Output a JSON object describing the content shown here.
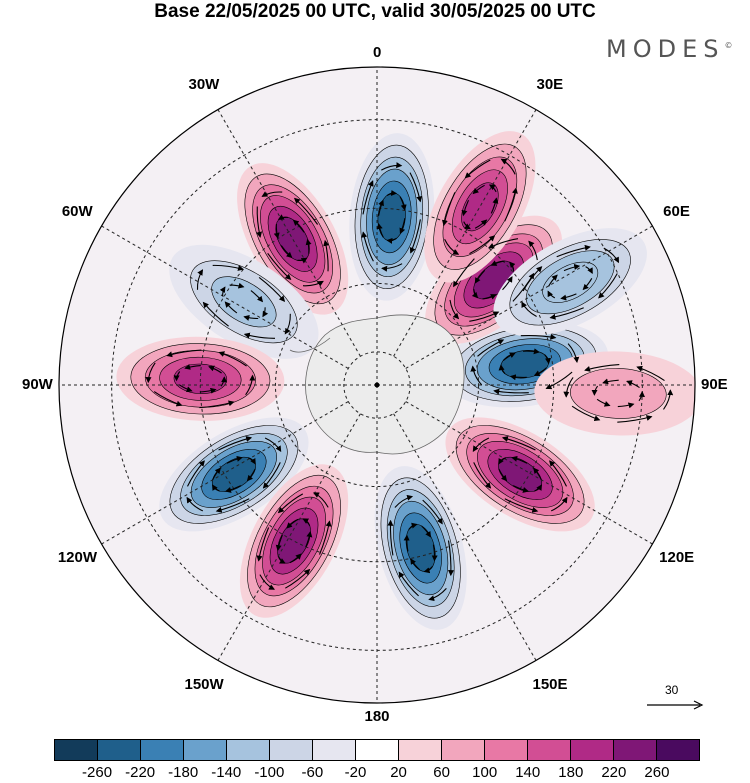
{
  "title": "Base 22/05/2025 00 UTC, valid 30/05/2025 00 UTC",
  "brand": "MODES",
  "brand_mark": "©",
  "longitude_labels": [
    "0",
    "30E",
    "60E",
    "90E",
    "120E",
    "150E",
    "180",
    "150W",
    "120W",
    "90W",
    "60W",
    "30W"
  ],
  "reference_vector": {
    "value": "30"
  },
  "colorbar": {
    "colors": [
      "#123b5a",
      "#1f5f8b",
      "#3a80b4",
      "#6aa1cc",
      "#a6c3de",
      "#ccd5e6",
      "#e6e6f0",
      "#ffffff",
      "#f7d2d9",
      "#f2a6bd",
      "#e878a5",
      "#d24e94",
      "#b02a86",
      "#7f1776",
      "#4a0a5f"
    ],
    "tick_labels": [
      "-260",
      "-220",
      "-180",
      "-140",
      "-100",
      "-60",
      "-20",
      "20",
      "60",
      "100",
      "140",
      "180",
      "220",
      "260"
    ]
  },
  "map": {
    "projection": "south-polar-stereographic",
    "field": "geopotential height anomaly",
    "anomaly_centers": [
      {
        "lon": 5,
        "lat": -42,
        "sign": "negative",
        "magnitude": 240
      },
      {
        "lon": -30,
        "lat": -42,
        "sign": "positive",
        "magnitude": 240
      },
      {
        "lon": -58,
        "lat": -45,
        "sign": "negative",
        "magnitude": 130
      },
      {
        "lon": -88,
        "lat": -40,
        "sign": "positive",
        "magnitude": 190
      },
      {
        "lon": -122,
        "lat": -42,
        "sign": "negative",
        "magnitude": 230
      },
      {
        "lon": -152,
        "lat": -40,
        "sign": "positive",
        "magnitude": 230
      },
      {
        "lon": 165,
        "lat": -42,
        "sign": "negative",
        "magnitude": 230
      },
      {
        "lon": 122,
        "lat": -42,
        "sign": "positive",
        "magnitude": 220
      },
      {
        "lon": 82,
        "lat": -47,
        "sign": "negative",
        "magnitude": 230
      },
      {
        "lon": 48,
        "lat": -45,
        "sign": "positive",
        "magnitude": 230
      },
      {
        "lon": 30,
        "lat": -33,
        "sign": "positive",
        "magnitude": 200
      },
      {
        "lon": 62,
        "lat": -30,
        "sign": "negative",
        "magnitude": 140
      },
      {
        "lon": 92,
        "lat": -25,
        "sign": "positive",
        "magnitude": 80
      }
    ]
  }
}
